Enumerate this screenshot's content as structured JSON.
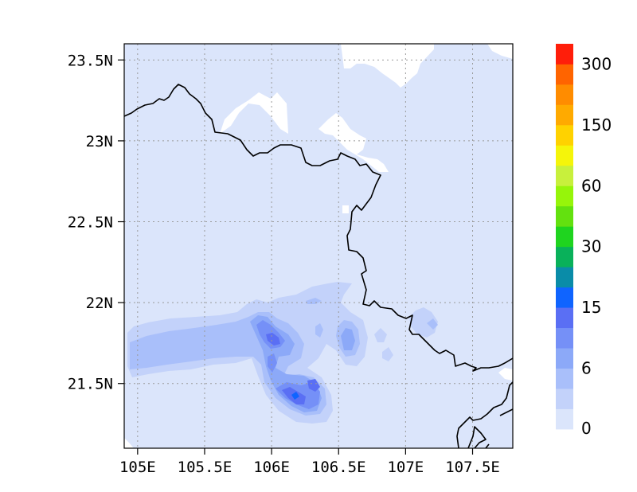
{
  "map": {
    "lon_range": [
      104.9,
      107.8
    ],
    "lat_range": [
      21.1,
      23.6
    ],
    "x_ticks": [
      {
        "value": 105.0,
        "label": "105E"
      },
      {
        "value": 105.5,
        "label": "105.5E"
      },
      {
        "value": 106.0,
        "label": "106E"
      },
      {
        "value": 106.5,
        "label": "106.5E"
      },
      {
        "value": 107.0,
        "label": "107E"
      },
      {
        "value": 107.5,
        "label": "107.5E"
      }
    ],
    "y_ticks": [
      {
        "value": 23.5,
        "label": "23.5N"
      },
      {
        "value": 23.0,
        "label": "23N"
      },
      {
        "value": 22.5,
        "label": "22.5N"
      },
      {
        "value": 22.0,
        "label": "22N"
      },
      {
        "value": 21.5,
        "label": "21.5N"
      }
    ],
    "gridlines": "dotted"
  },
  "colorbar": {
    "labels": [
      "300",
      "150",
      "60",
      "30",
      "15",
      "6",
      "0"
    ],
    "colors_bottom_to_top": [
      "#dbe5fb",
      "#c3d2fa",
      "#a9bffa",
      "#8ca9f8",
      "#7590f7",
      "#5a6ff4",
      "#0f64ff",
      "#0a8ca8",
      "#09b15a",
      "#1fd41f",
      "#63e10f",
      "#96f50a",
      "#c8f03c",
      "#f5f50a",
      "#ffd200",
      "#ffaa00",
      "#ff8c00",
      "#ff6400",
      "#ff1e0a"
    ]
  },
  "field_colors": {
    "background": "#dbe5fb",
    "level1": "#c3d2fa",
    "level2": "#a9bffa",
    "level3": "#8ca9f8",
    "level4": "#7590f7",
    "level5": "#5a6ff4",
    "level6": "#0f64ff",
    "missing": "#ffffff"
  }
}
